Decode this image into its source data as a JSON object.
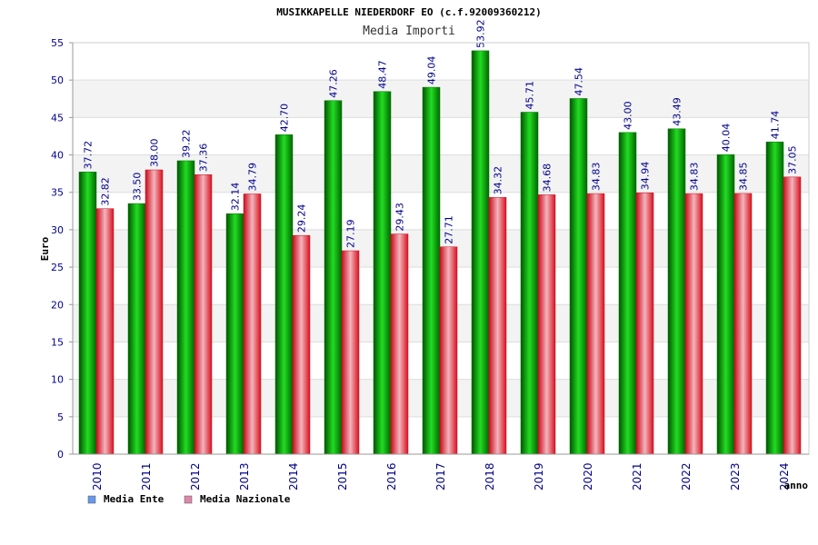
{
  "chart_data": {
    "type": "bar",
    "title": "MUSIKKAPELLE NIEDERDORF EO (c.f.92009360212)",
    "subtitle": "Media Importi",
    "ylabel": "Euro",
    "xlabel": "anno",
    "ylim": [
      0,
      55
    ],
    "yticks": [
      0,
      5,
      10,
      15,
      20,
      25,
      30,
      35,
      40,
      45,
      50,
      55
    ],
    "grid": true,
    "legend_position": "bottom-left",
    "categories": [
      "2010",
      "2011",
      "2012",
      "2013",
      "2014",
      "2015",
      "2016",
      "2017",
      "2018",
      "2019",
      "2020",
      "2021",
      "2022",
      "2023",
      "2024"
    ],
    "series": [
      {
        "name": "Media Ente",
        "color": "#00c000",
        "legend_color": "#6699ee",
        "values": [
          37.72,
          33.5,
          39.22,
          32.14,
          42.7,
          47.26,
          48.47,
          49.04,
          53.92,
          45.71,
          47.54,
          43.0,
          43.49,
          40.04,
          41.74
        ],
        "labels": [
          "37.72",
          "33.50",
          "39.22",
          "32.14",
          "42.70",
          "47.26",
          "48.47",
          "49.04",
          "53.92",
          "45.71",
          "47.54",
          "43.00",
          "43.49",
          "40.04",
          "41.74"
        ]
      },
      {
        "name": "Media Nazionale",
        "color": "#e8303c",
        "legend_color": "#dd88aa",
        "values": [
          32.82,
          38.0,
          37.36,
          34.79,
          29.24,
          27.19,
          29.43,
          27.71,
          34.32,
          34.68,
          34.83,
          34.94,
          34.83,
          34.85,
          37.05
        ],
        "labels": [
          "32.82",
          "38.00",
          "37.36",
          "34.79",
          "29.24",
          "27.19",
          "29.43",
          "27.71",
          "34.32",
          "34.68",
          "34.83",
          "34.94",
          "34.83",
          "34.85",
          "37.05"
        ]
      }
    ]
  }
}
